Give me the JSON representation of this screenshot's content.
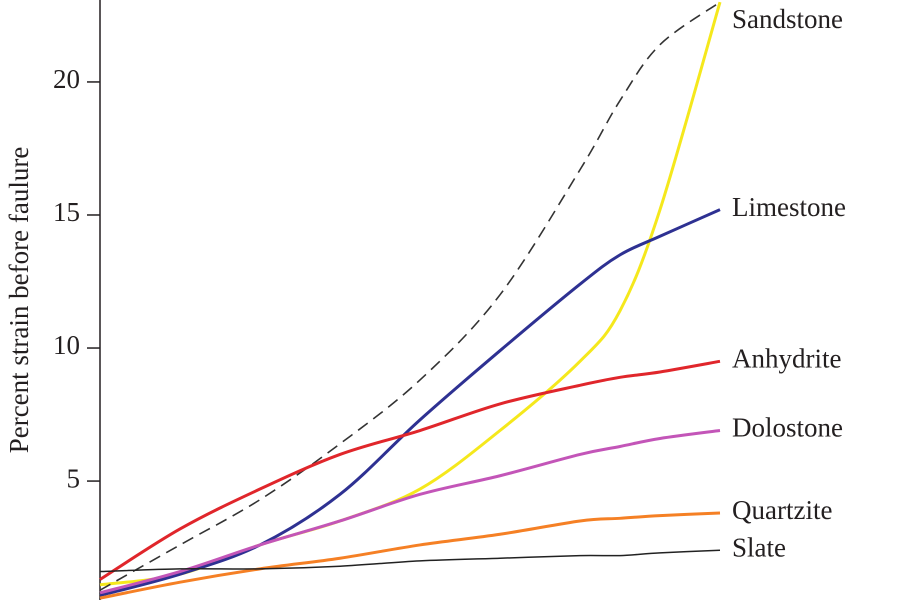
{
  "chart_data": {
    "type": "line",
    "y_label": "Percent strain before faulure",
    "x": [
      0,
      10,
      20,
      30,
      40,
      50,
      60,
      65,
      70,
      77.5
    ],
    "xlim": [
      0,
      100
    ],
    "ylim": [
      0.53,
      23.08
    ],
    "yticks": [
      5,
      10,
      15,
      20
    ],
    "series": [
      {
        "name": "Sandstone",
        "color": "#f5e81c",
        "values": [
          1.1,
          1.5,
          2.6,
          3.5,
          4.7,
          6.9,
          9.5,
          11.4,
          15.2,
          23
        ]
      },
      {
        "color": "#333333",
        "dash": true,
        "values": [
          0.9,
          2.6,
          4.3,
          6.4,
          8.8,
          12.0,
          16.7,
          19.3,
          21.4,
          23
        ]
      },
      {
        "name": "Limestone",
        "color": "#2e3192",
        "values": [
          0.7,
          1.5,
          2.6,
          4.5,
          7.3,
          9.9,
          12.4,
          13.5,
          14.2,
          15.2
        ]
      },
      {
        "name": "Anhydrite",
        "color": "#e0262b",
        "values": [
          1.3,
          3.2,
          4.7,
          6.0,
          6.9,
          7.9,
          8.6,
          8.9,
          9.1,
          9.5
        ]
      },
      {
        "name": "Dolostone",
        "color": "#c355b8",
        "values": [
          0.8,
          1.6,
          2.6,
          3.5,
          4.5,
          5.2,
          6.0,
          6.3,
          6.6,
          6.9
        ]
      },
      {
        "name": "Quartzite",
        "color": "#f58025",
        "values": [
          0.6,
          1.2,
          1.7,
          2.1,
          2.6,
          3.0,
          3.5,
          3.6,
          3.7,
          3.8
        ]
      },
      {
        "name": "Slate",
        "color": "#222222",
        "thin": true,
        "values": [
          1.6,
          1.7,
          1.7,
          1.8,
          2.0,
          2.1,
          2.2,
          2.2,
          2.3,
          2.4
        ]
      }
    ]
  }
}
